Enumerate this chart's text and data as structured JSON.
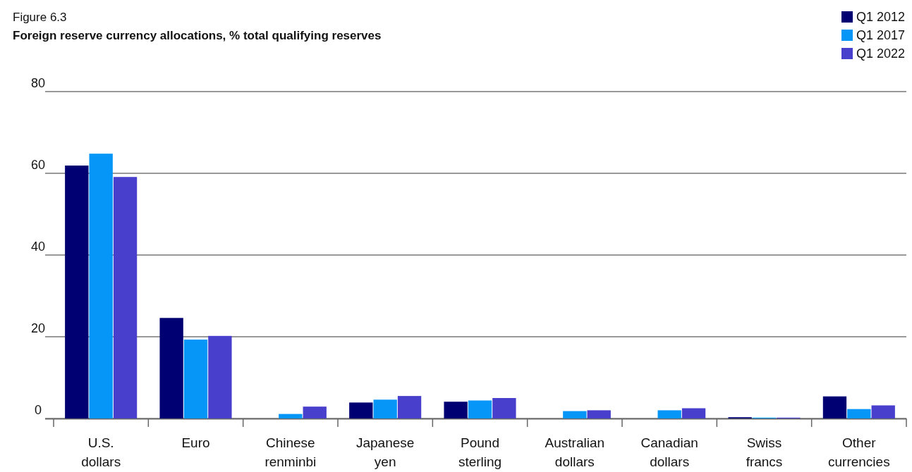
{
  "chart_data": {
    "type": "bar",
    "title": "Foreign reserve currency allocations, % total qualifying reserves",
    "annotations": [
      "Figure 6.3"
    ],
    "categories": [
      "U.S. dollars",
      "Euro",
      "Chinese renminbi",
      "Japanese yen",
      "Pound sterling",
      "Australian dollars",
      "Canadian dollars",
      "Swiss francs",
      "Other currencies"
    ],
    "series": [
      {
        "name": "Q1 2012",
        "color": "#000072",
        "values": [
          61.9,
          24.6,
          0,
          3.9,
          4.1,
          0,
          0,
          0.3,
          5.4
        ]
      },
      {
        "name": "Q1 2017",
        "color": "#0596f8",
        "values": [
          64.8,
          19.3,
          1.1,
          4.6,
          4.4,
          1.8,
          2.0,
          0.2,
          2.3
        ]
      },
      {
        "name": "Q1 2022",
        "color": "#4840cc",
        "values": [
          59.1,
          20.2,
          2.9,
          5.5,
          5.0,
          2.0,
          2.5,
          0.2,
          3.2
        ]
      }
    ],
    "ylim": [
      0,
      80
    ],
    "yticks": [
      0,
      20,
      40,
      60,
      80
    ],
    "grid": "y",
    "legend": "top right"
  }
}
